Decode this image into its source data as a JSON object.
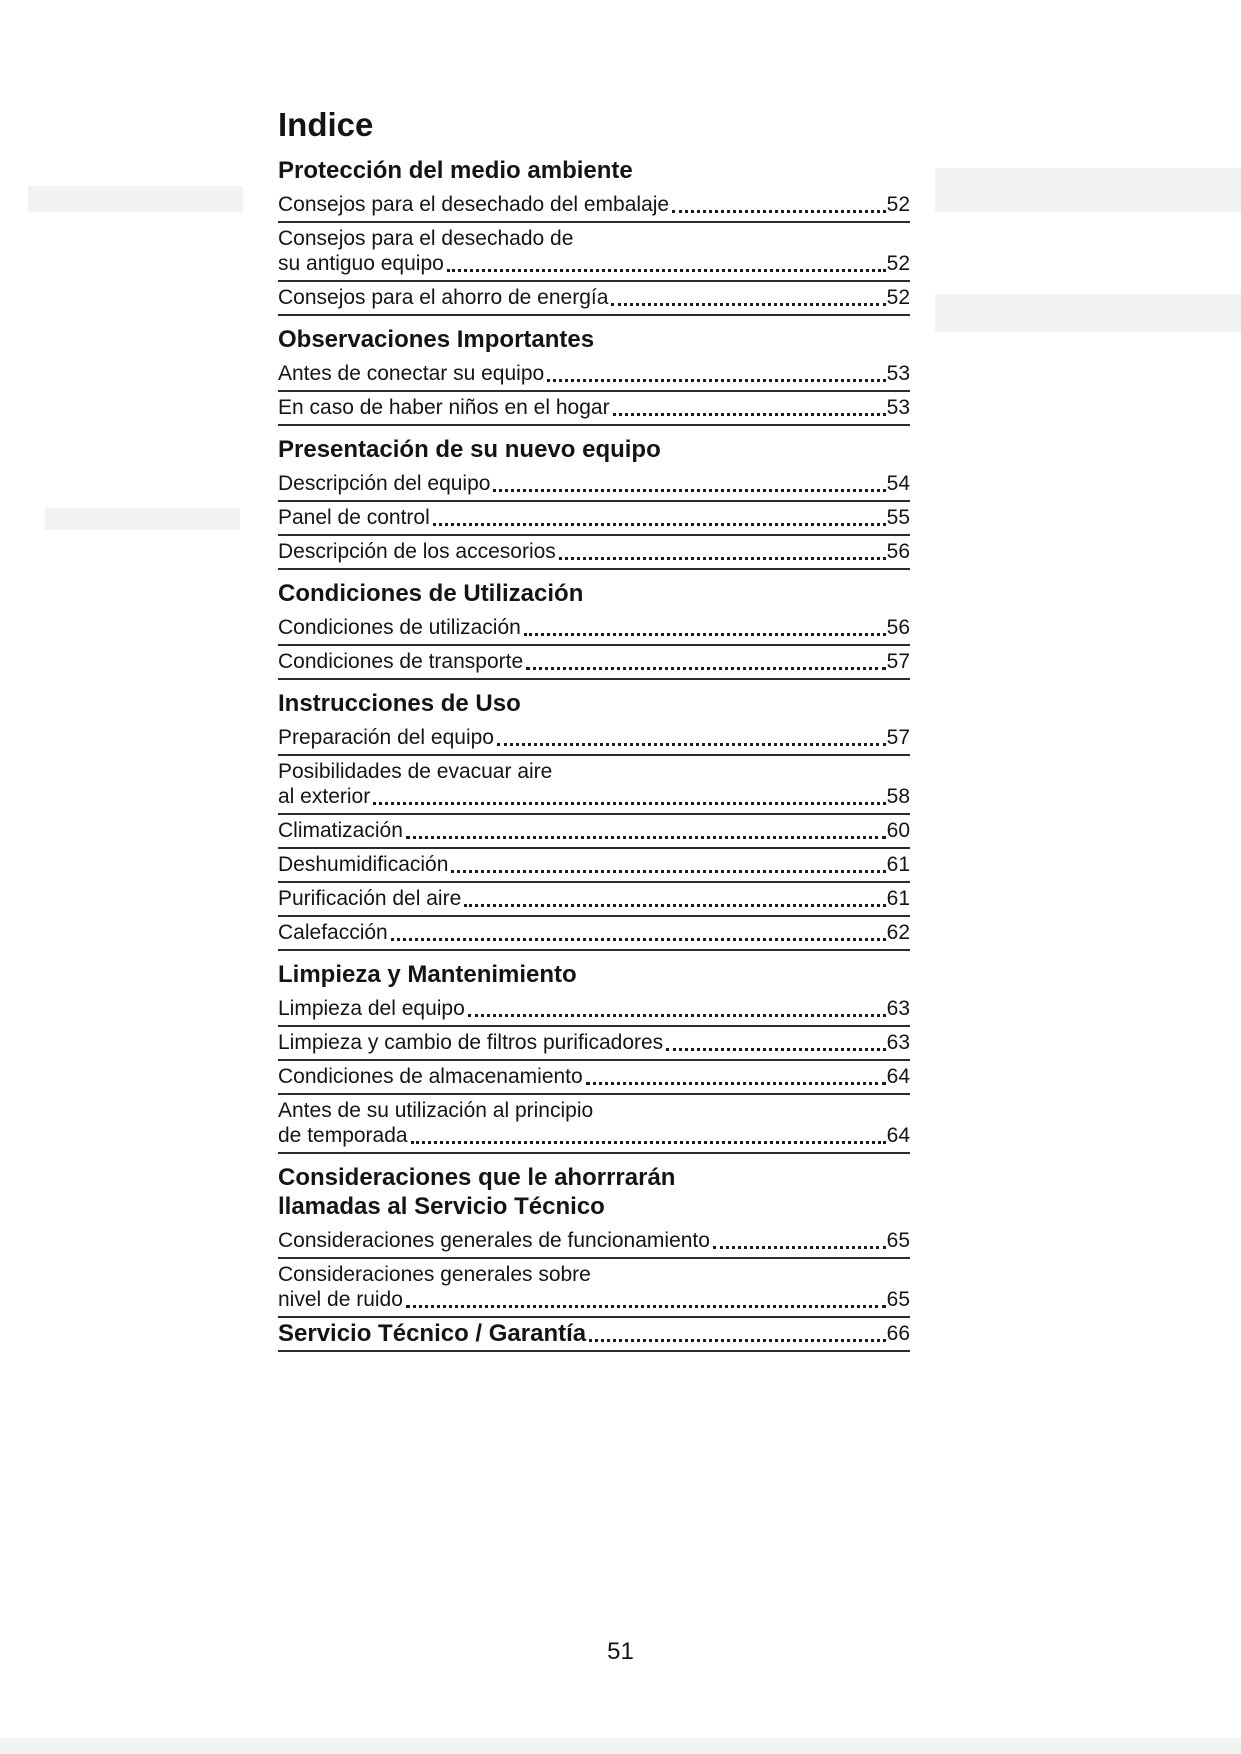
{
  "page": {
    "title": "Indice",
    "footer_page_number": "51"
  },
  "toc": {
    "sections": [
      {
        "heading_lines": [
          "Protección del medio ambiente"
        ],
        "entries": [
          {
            "lines": [
              "Consejos para el desechado del embalaje"
            ],
            "page": "52"
          },
          {
            "lines": [
              "Consejos para el desechado de",
              "su antiguo equipo"
            ],
            "page": "52"
          },
          {
            "lines": [
              "Consejos para el ahorro de energía"
            ],
            "page": "52"
          }
        ]
      },
      {
        "heading_lines": [
          "Observaciones Importantes"
        ],
        "entries": [
          {
            "lines": [
              "Antes de conectar su equipo"
            ],
            "page": "53"
          },
          {
            "lines": [
              "En caso de haber niños en el hogar"
            ],
            "page": "53"
          }
        ]
      },
      {
        "heading_lines": [
          "Presentación de su nuevo equipo"
        ],
        "entries": [
          {
            "lines": [
              "Descripción del equipo"
            ],
            "page": "54"
          },
          {
            "lines": [
              "Panel de control"
            ],
            "page": "55"
          },
          {
            "lines": [
              "Descripción de los accesorios"
            ],
            "page": "56"
          }
        ]
      },
      {
        "heading_lines": [
          "Condiciones de Utilización"
        ],
        "entries": [
          {
            "lines": [
              "Condiciones de utilización"
            ],
            "page": "56"
          },
          {
            "lines": [
              "Condiciones de transporte"
            ],
            "page": "57"
          }
        ]
      },
      {
        "heading_lines": [
          "Instrucciones de Uso"
        ],
        "entries": [
          {
            "lines": [
              "Preparación del equipo"
            ],
            "page": "57"
          },
          {
            "lines": [
              "Posibilidades de evacuar aire",
              "al exterior"
            ],
            "page": "58"
          },
          {
            "lines": [
              "Climatización"
            ],
            "page": "60"
          },
          {
            "lines": [
              "Deshumidificación"
            ],
            "page": "61"
          },
          {
            "lines": [
              "Purificación del aire"
            ],
            "page": "61"
          },
          {
            "lines": [
              "Calefacción"
            ],
            "page": "62"
          }
        ]
      },
      {
        "heading_lines": [
          "Limpieza y Mantenimiento"
        ],
        "entries": [
          {
            "lines": [
              "Limpieza del equipo"
            ],
            "page": "63"
          },
          {
            "lines": [
              "Limpieza y cambio de filtros purificadores"
            ],
            "page": "63"
          },
          {
            "lines": [
              "Condiciones de almacenamiento"
            ],
            "page": "64"
          },
          {
            "lines": [
              "Antes de su utilización al principio",
              "de temporada"
            ],
            "page": "64"
          }
        ]
      },
      {
        "heading_lines": [
          "Consideraciones que le ahorrrarán",
          "llamadas al Servicio Técnico"
        ],
        "entries": [
          {
            "lines": [
              "Consideraciones generales de funcionamiento"
            ],
            "page": "65"
          },
          {
            "lines": [
              "Consideraciones generales sobre",
              "nivel de ruido"
            ],
            "page": "65"
          }
        ]
      },
      {
        "heading_lines": [],
        "entries": [
          {
            "lines": [
              "Servicio Técnico / Garantía"
            ],
            "page": "66",
            "bold": true
          }
        ]
      }
    ]
  }
}
